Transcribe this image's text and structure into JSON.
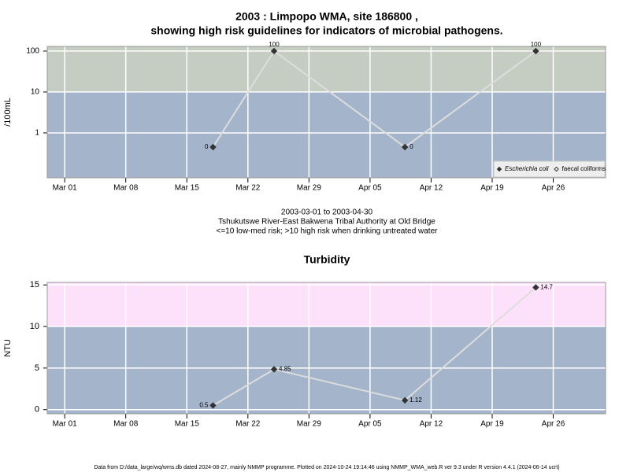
{
  "chart_data": [
    {
      "type": "line",
      "title": "2003 : Limpopo WMA, site 186800 ,",
      "subtitle": "showing high risk guidelines for indicators of microbial pathogens.",
      "ylabel": "/100mL",
      "log": true,
      "x": [
        "2003-03-18",
        "2003-03-25",
        "2003-04-09",
        "2003-04-24"
      ],
      "series": [
        {
          "name": "Escherichia coli",
          "color": "#333333",
          "marker": "filled",
          "values": [
            0.45,
            100,
            0.45,
            100
          ],
          "value_labels": [
            "0",
            "100",
            "0",
            "100"
          ]
        },
        {
          "name": "faecal coliforms",
          "color": "#333333",
          "marker": "open",
          "values": [
            null,
            null,
            null,
            null
          ]
        }
      ],
      "xlim": [
        "2003-02-27",
        "2003-05-02"
      ],
      "xticks": [
        {
          "value": "2003-03-01",
          "label": "Mar 01"
        },
        {
          "value": "2003-03-08",
          "label": "Mar 08"
        },
        {
          "value": "2003-03-15",
          "label": "Mar 15"
        },
        {
          "value": "2003-03-22",
          "label": "Mar 22"
        },
        {
          "value": "2003-03-29",
          "label": "Mar 29"
        },
        {
          "value": "2003-04-05",
          "label": "Apr 05"
        },
        {
          "value": "2003-04-12",
          "label": "Apr 12"
        },
        {
          "value": "2003-04-19",
          "label": "Apr 19"
        },
        {
          "value": "2003-04-26",
          "label": "Apr 26"
        }
      ],
      "ylim": [
        0.08,
        130
      ],
      "yticks": [
        1,
        10,
        100
      ],
      "threshold": 10,
      "band_colors": [
        "#a3b4cb",
        "#c5cdc2"
      ],
      "line_color": "#dddddd",
      "grid": true,
      "legend": "lower right",
      "notes": [
        "2003-03-01 to 2003-04-30",
        "Tshukutswe River-East Bakwena Tribal Authority at Old Bridge",
        "<=10 low-med risk; >10 high risk when drinking untreated water"
      ]
    },
    {
      "type": "line",
      "title": "Turbidity",
      "ylabel": "NTU",
      "log": false,
      "x": [
        "2003-03-18",
        "2003-03-25",
        "2003-04-09",
        "2003-04-24"
      ],
      "values": [
        0.5,
        4.85,
        1.12,
        14.7
      ],
      "color": "#333333",
      "xlim": [
        "2003-02-27",
        "2003-05-02"
      ],
      "xticks": [
        {
          "value": "2003-03-01",
          "label": "Mar 01"
        },
        {
          "value": "2003-03-08",
          "label": "Mar 08"
        },
        {
          "value": "2003-03-15",
          "label": "Mar 15"
        },
        {
          "value": "2003-03-22",
          "label": "Mar 22"
        },
        {
          "value": "2003-03-29",
          "label": "Mar 29"
        },
        {
          "value": "2003-04-05",
          "label": "Apr 05"
        },
        {
          "value": "2003-04-12",
          "label": "Apr 12"
        },
        {
          "value": "2003-04-19",
          "label": "Apr 19"
        },
        {
          "value": "2003-04-26",
          "label": "Apr 26"
        }
      ],
      "ylim": [
        -0.5,
        15.3
      ],
      "yticks": [
        0,
        5,
        10,
        15
      ],
      "threshold": 10,
      "band_colors": [
        "#a3b4cb",
        "#fde0fa"
      ],
      "line_color": "#dddddd",
      "grid": true
    }
  ],
  "footer": "Data from D:/data_large/wq/wms.db dated 2024-08-27, mainly NMMP programme. Plotted on 2024-10-24 19:14:46 using NMMP_WMA_web.R ver 9.3 under R version 4.4.1 (2024-06-14 ucrt)"
}
